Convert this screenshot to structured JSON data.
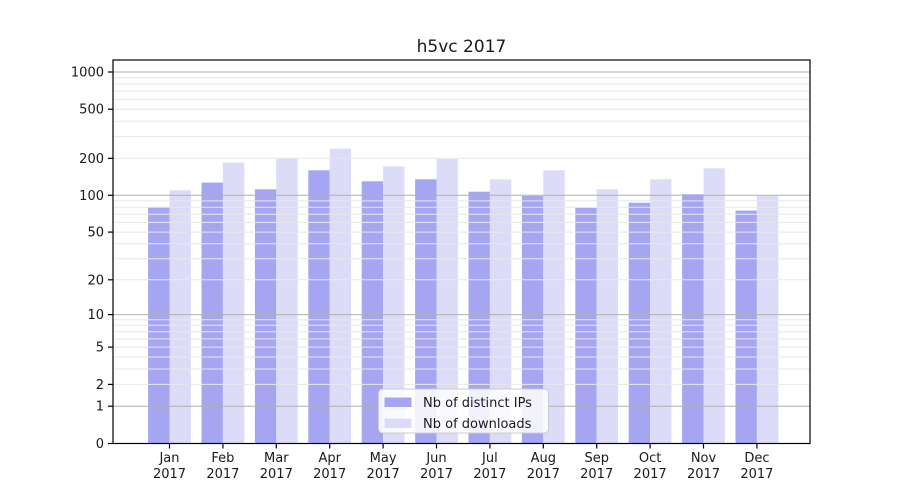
{
  "figure": {
    "background": "#ffffff"
  },
  "chart_data": {
    "type": "bar",
    "title": "h5vc 2017",
    "xlabel": "",
    "ylabel": "",
    "categories": [
      "Jan 2017",
      "Feb 2017",
      "Mar 2017",
      "Apr 2017",
      "May 2017",
      "Jun 2017",
      "Jul 2017",
      "Aug 2017",
      "Sep 2017",
      "Oct 2017",
      "Nov 2017",
      "Dec 2017"
    ],
    "series": [
      {
        "name": "Nb of distinct IPs",
        "color": "#a5a5f2",
        "values": [
          80,
          127,
          112,
          160,
          130,
          135,
          107,
          99,
          79,
          87,
          102,
          75
        ]
      },
      {
        "name": "Nb of downloads",
        "color": "#dcdcf8",
        "values": [
          110,
          185,
          200,
          240,
          172,
          198,
          135,
          160,
          112,
          135,
          166,
          99
        ]
      }
    ],
    "yscale": "log1p",
    "ylim": [
      0,
      1250
    ],
    "yticks": [
      0,
      1,
      2,
      5,
      10,
      20,
      50,
      100,
      200,
      500,
      1000
    ],
    "ytick_labels": [
      "0",
      "1",
      "2",
      "5",
      "10",
      "20",
      "50",
      "100",
      "200",
      "500",
      "1000"
    ],
    "grid": true,
    "grid_major_values": [
      1,
      10,
      100,
      1000
    ],
    "grid_minor_values": [
      2,
      3,
      4,
      5,
      6,
      7,
      8,
      9,
      20,
      30,
      40,
      50,
      60,
      70,
      80,
      90,
      200,
      300,
      400,
      500,
      600,
      700,
      800,
      900
    ],
    "legend_position": "lower center",
    "colors": {
      "grid_major": "#b0b0b0",
      "grid_minor": "#e8e8e8",
      "spine": "#000000",
      "text": "#1a1a1a",
      "legend_bg": "#ffffff",
      "legend_border": "#cccccc"
    }
  }
}
